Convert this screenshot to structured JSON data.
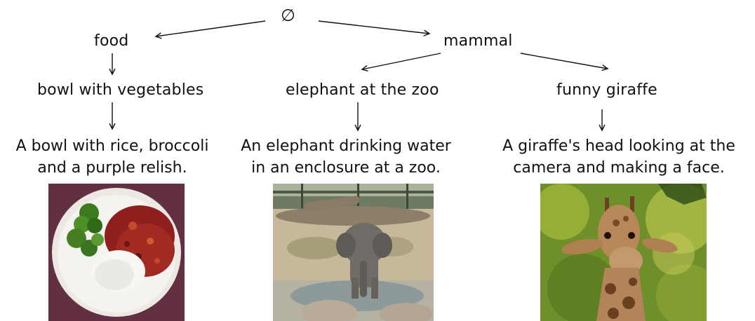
{
  "root": {
    "symbol": "∅"
  },
  "level1": [
    {
      "id": "food",
      "label": "food"
    },
    {
      "id": "mammal",
      "label": "mammal"
    }
  ],
  "level2": [
    {
      "id": "bowl",
      "label": "bowl with vegetables"
    },
    {
      "id": "elephant",
      "label": "elephant at the zoo"
    },
    {
      "id": "giraffe",
      "label": "funny giraffe"
    }
  ],
  "captions": [
    {
      "id": "bowl",
      "lines": [
        "A bowl with rice, broccoli",
        "and a purple relish."
      ]
    },
    {
      "id": "elephant",
      "lines": [
        "An elephant drinking water",
        "in an enclosure at a zoo."
      ]
    },
    {
      "id": "giraffe",
      "lines": [
        "A giraffe's head looking at the",
        "camera and making a face."
      ]
    }
  ],
  "images": [
    {
      "id": "bowl",
      "subject": "bowl-of-rice-broccoli-relish"
    },
    {
      "id": "elephant",
      "subject": "elephant-at-zoo-pond"
    },
    {
      "id": "giraffe",
      "subject": "giraffe-head-closeup"
    }
  ],
  "colors": {
    "ink": "#111111",
    "background": "#ffffff"
  }
}
